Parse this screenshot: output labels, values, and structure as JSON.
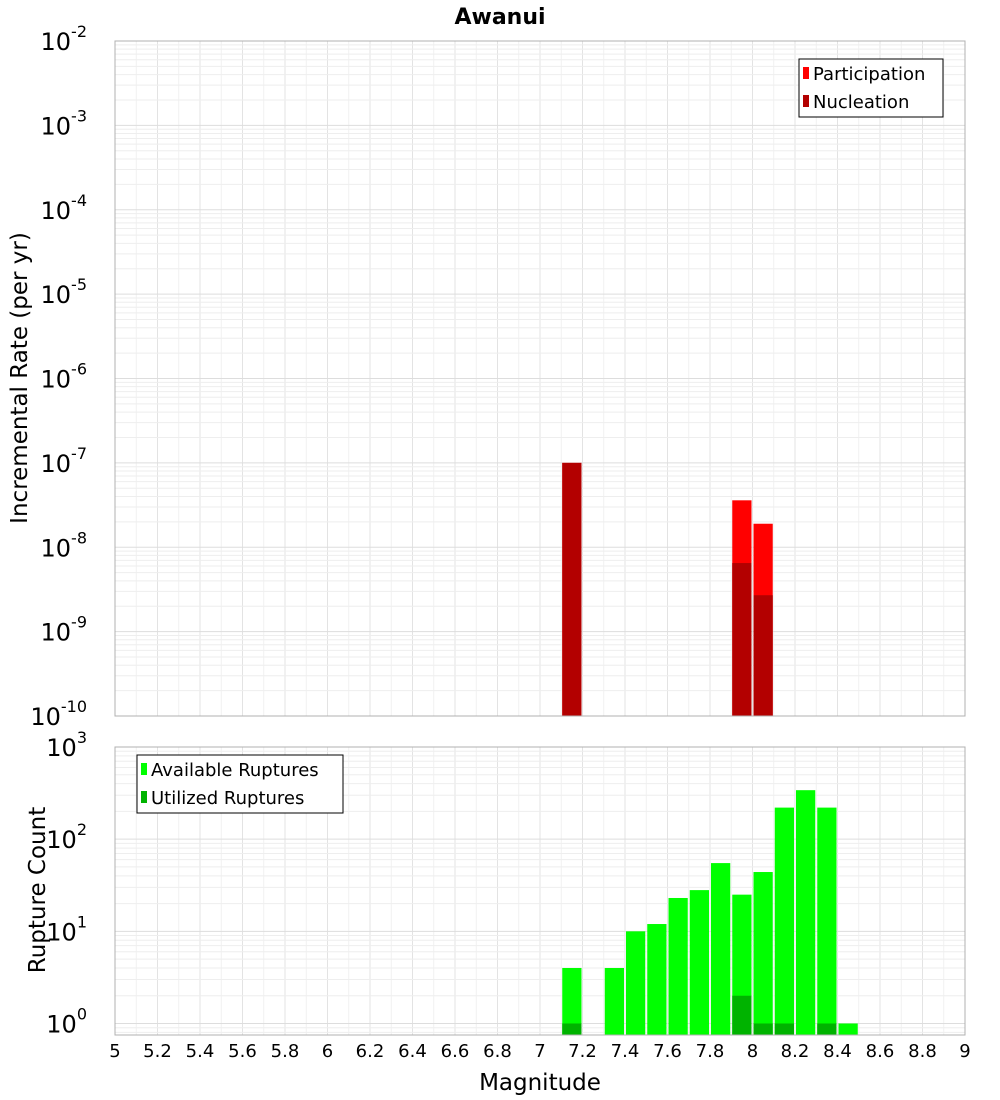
{
  "chart_data": [
    {
      "type": "bar",
      "title": "Awanui",
      "xlabel": "Magnitude",
      "ylabel": "Incremental Rate (per yr)",
      "xlim": [
        5,
        9
      ],
      "ylim": [
        1e-10,
        0.01
      ],
      "y_scale": "log",
      "grid": true,
      "legend_position": "top-right",
      "ytick_labels": [
        {
          "base": "10",
          "exp": "-2"
        },
        {
          "base": "10",
          "exp": "-3"
        },
        {
          "base": "10",
          "exp": "-4"
        },
        {
          "base": "10",
          "exp": "-5"
        },
        {
          "base": "10",
          "exp": "-6"
        },
        {
          "base": "10",
          "exp": "-7"
        },
        {
          "base": "10",
          "exp": "-8"
        },
        {
          "base": "10",
          "exp": "-9"
        },
        {
          "base": "10",
          "exp": "-10"
        }
      ],
      "bin_width": 0.1,
      "series": [
        {
          "name": "Participation",
          "color": "#ff0000",
          "points": [
            {
              "x": 7.15,
              "y": 1e-07
            },
            {
              "x": 7.95,
              "y": 3.6e-08
            },
            {
              "x": 8.05,
              "y": 1.9e-08
            }
          ]
        },
        {
          "name": "Nucleation",
          "color": "#b30000",
          "points": [
            {
              "x": 7.15,
              "y": 1e-07
            },
            {
              "x": 7.95,
              "y": 6.5e-09
            },
            {
              "x": 8.05,
              "y": 2.7e-09
            }
          ]
        }
      ]
    },
    {
      "type": "bar",
      "title": "",
      "xlabel": "Magnitude",
      "ylabel": "Rupture Count",
      "xlim": [
        5,
        9
      ],
      "ylim": [
        0.75,
        1000
      ],
      "y_scale": "log",
      "grid": true,
      "legend_position": "top-left",
      "ytick_labels": [
        {
          "base": "10",
          "exp": "3"
        },
        {
          "base": "10",
          "exp": "2"
        },
        {
          "base": "10",
          "exp": "1"
        },
        {
          "base": "10",
          "exp": "0"
        }
      ],
      "xtick_labels": [
        "5",
        "5.2",
        "5.4",
        "5.6",
        "5.8",
        "6",
        "6.2",
        "6.4",
        "6.6",
        "6.8",
        "7",
        "7.2",
        "7.4",
        "7.6",
        "7.8",
        "8",
        "8.2",
        "8.4",
        "8.6",
        "8.8",
        "9"
      ],
      "bin_width": 0.1,
      "series": [
        {
          "name": "Available Ruptures",
          "color": "#00ff00",
          "points": [
            {
              "x": 7.15,
              "y": 4
            },
            {
              "x": 7.35,
              "y": 4
            },
            {
              "x": 7.45,
              "y": 10
            },
            {
              "x": 7.55,
              "y": 12
            },
            {
              "x": 7.65,
              "y": 23
            },
            {
              "x": 7.75,
              "y": 28
            },
            {
              "x": 7.85,
              "y": 55
            },
            {
              "x": 7.95,
              "y": 25
            },
            {
              "x": 8.05,
              "y": 44
            },
            {
              "x": 8.15,
              "y": 220
            },
            {
              "x": 8.25,
              "y": 340
            },
            {
              "x": 8.35,
              "y": 220
            },
            {
              "x": 8.45,
              "y": 1
            }
          ]
        },
        {
          "name": "Utilized Ruptures",
          "color": "#00b300",
          "points": [
            {
              "x": 7.15,
              "y": 1
            },
            {
              "x": 7.95,
              "y": 2
            },
            {
              "x": 8.05,
              "y": 1
            },
            {
              "x": 8.15,
              "y": 1
            },
            {
              "x": 8.35,
              "y": 1
            }
          ]
        }
      ]
    }
  ]
}
